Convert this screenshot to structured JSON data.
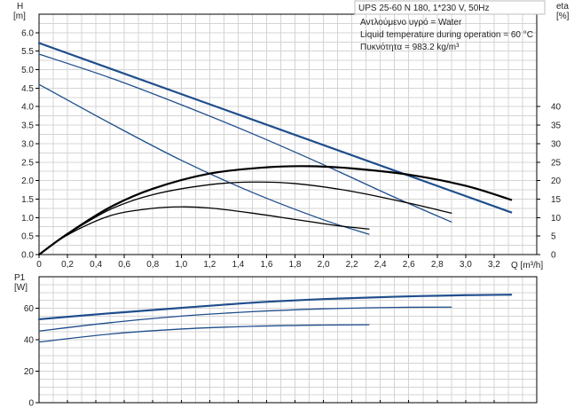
{
  "chart_data": {
    "type": "line",
    "info": {
      "model": "UPS 25-60 N 180, 1*230 V, 50Hz",
      "fluid": "Αντλούμενο υγρό = Water",
      "temperature": "Liquid temperature during operation = 60 °C",
      "density": "Πυκνότητα = 983.2 kg/m³"
    },
    "colors": {
      "system": "#1f4e8c",
      "efficiency": "#000000",
      "grid": "#d4d4d4"
    },
    "top": {
      "xlabel": "Q [m³/h]",
      "ylabel_name": "H",
      "ylabel_unit": "[m]",
      "y2label_name": "eta",
      "y2label_unit": "[%]",
      "xlim": [
        0,
        3.5
      ],
      "ylim": [
        0,
        6.5
      ],
      "y2lim": [
        0,
        65
      ],
      "grid": true,
      "xticks": [
        "0",
        "0,2",
        "0,4",
        "0,6",
        "0,8",
        "1,0",
        "1,2",
        "1,4",
        "1,6",
        "1,8",
        "2,0",
        "2,2",
        "2,4",
        "2,6",
        "2,8",
        "3,0",
        "3,2"
      ],
      "xtick_values": [
        0,
        0.2,
        0.4,
        0.6,
        0.8,
        1.0,
        1.2,
        1.4,
        1.6,
        1.8,
        2.0,
        2.2,
        2.4,
        2.6,
        2.8,
        3.0,
        3.2
      ],
      "yticks": [
        "0.0",
        "0.5",
        "1.0",
        "1.5",
        "2.0",
        "2.5",
        "3.0",
        "3.5",
        "4.0",
        "4.5",
        "5.0",
        "5.5",
        "6.0"
      ],
      "ytick_values": [
        0,
        0.5,
        1.0,
        1.5,
        2.0,
        2.5,
        3.0,
        3.5,
        4.0,
        4.5,
        5.0,
        5.5,
        6.0
      ],
      "y2ticks": [
        "0",
        "5",
        "10",
        "15",
        "20",
        "25",
        "30",
        "35",
        "40"
      ],
      "y2tick_values": [
        0,
        5,
        10,
        15,
        20,
        25,
        30,
        35,
        40
      ],
      "head_series": [
        {
          "x": [
            0,
            3.32
          ],
          "y": [
            5.72,
            1.14
          ],
          "width": 2.2
        },
        {
          "x": [
            0,
            0.5,
            1.0,
            1.5,
            2.0,
            2.5,
            2.9
          ],
          "y": [
            5.42,
            4.78,
            4.05,
            3.27,
            2.43,
            1.55,
            0.88
          ],
          "width": 1.3
        },
        {
          "x": [
            0,
            0.5,
            1.0,
            1.5,
            2.0,
            2.32
          ],
          "y": [
            4.6,
            3.55,
            2.55,
            1.68,
            0.94,
            0.55
          ],
          "width": 1.3
        }
      ],
      "efficiency_series": [
        {
          "x": [
            0,
            0.2,
            0.5,
            0.8,
            1.2,
            1.6,
            1.9,
            2.2,
            2.6,
            3.0,
            3.32
          ],
          "y": [
            0,
            5.6,
            12.8,
            17.8,
            21.9,
            23.6,
            23.9,
            23.3,
            21.6,
            18.6,
            14.8
          ],
          "width": 2.2
        },
        {
          "x": [
            0,
            0.2,
            0.5,
            0.8,
            1.2,
            1.5,
            1.8,
            2.2,
            2.6,
            2.9
          ],
          "y": [
            0,
            5.5,
            12.2,
            16.2,
            18.9,
            19.6,
            19.2,
            17.1,
            13.9,
            11.2
          ],
          "width": 1.3
        },
        {
          "x": [
            0,
            0.2,
            0.5,
            0.8,
            1.0,
            1.2,
            1.5,
            1.8,
            2.1,
            2.32
          ],
          "y": [
            0,
            5.3,
            10.5,
            12.5,
            12.9,
            12.6,
            11.2,
            9.5,
            7.8,
            6.9
          ],
          "width": 1.3
        }
      ]
    },
    "bottom": {
      "ylabel_name": "P1",
      "ylabel_unit": "[W]",
      "xlim": [
        0,
        3.5
      ],
      "ylim": [
        0,
        80
      ],
      "grid": true,
      "yticks": [
        "0",
        "20",
        "40",
        "60"
      ],
      "ytick_values": [
        0,
        20,
        40,
        60
      ],
      "power_series": [
        {
          "x": [
            0,
            0.5,
            1.0,
            1.5,
            2.0,
            2.5,
            3.0,
            3.32
          ],
          "y": [
            53,
            56.8,
            60.2,
            63.5,
            65.8,
            67.3,
            68.3,
            68.6
          ],
          "width": 2.2
        },
        {
          "x": [
            0,
            0.5,
            1.0,
            1.5,
            2.0,
            2.5,
            2.9
          ],
          "y": [
            45.5,
            50.8,
            55,
            57.8,
            59.6,
            60.5,
            60.7
          ],
          "width": 1.3
        },
        {
          "x": [
            0,
            0.5,
            1.0,
            1.5,
            2.0,
            2.32
          ],
          "y": [
            38.5,
            43.6,
            46.8,
            48.5,
            49.3,
            49.5
          ],
          "width": 1.3
        }
      ]
    }
  }
}
